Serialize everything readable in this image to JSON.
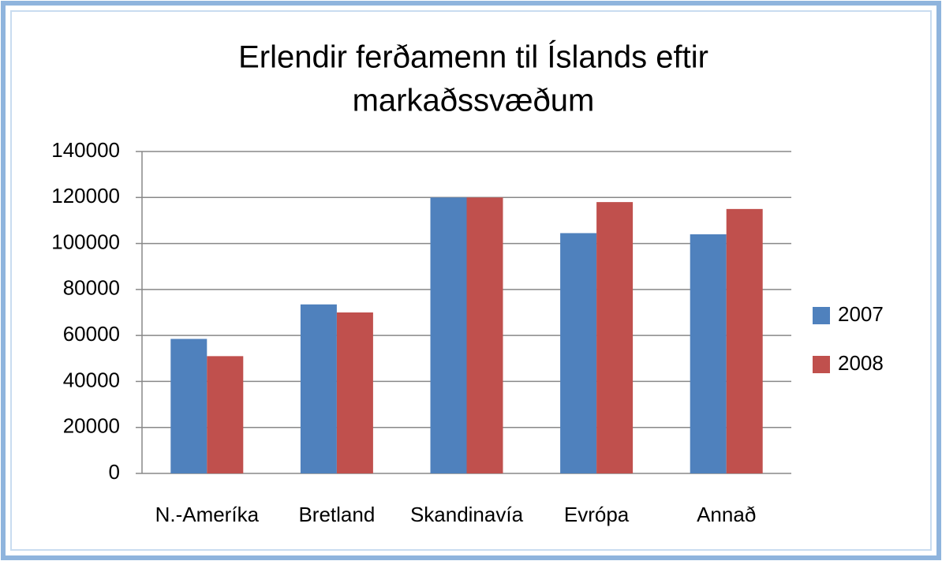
{
  "chart_data": {
    "type": "bar",
    "title": [
      "Erlendir ferðamenn til Íslands eftir",
      "markaðssvæðum"
    ],
    "categories": [
      "N.-Ameríka",
      "Bretland",
      "Skandinavía",
      "Evrópa",
      "Annað"
    ],
    "series": [
      {
        "name": "2007",
        "color": "#4f81bd",
        "values": [
          58500,
          73500,
          120000,
          104500,
          104000
        ]
      },
      {
        "name": "2008",
        "color": "#c0504d",
        "values": [
          51000,
          70000,
          120000,
          118000,
          115000
        ]
      }
    ],
    "ylim": [
      0,
      140000
    ],
    "yticks": [
      0,
      20000,
      40000,
      60000,
      80000,
      100000,
      120000,
      140000
    ],
    "grid": true,
    "legend": "right"
  }
}
